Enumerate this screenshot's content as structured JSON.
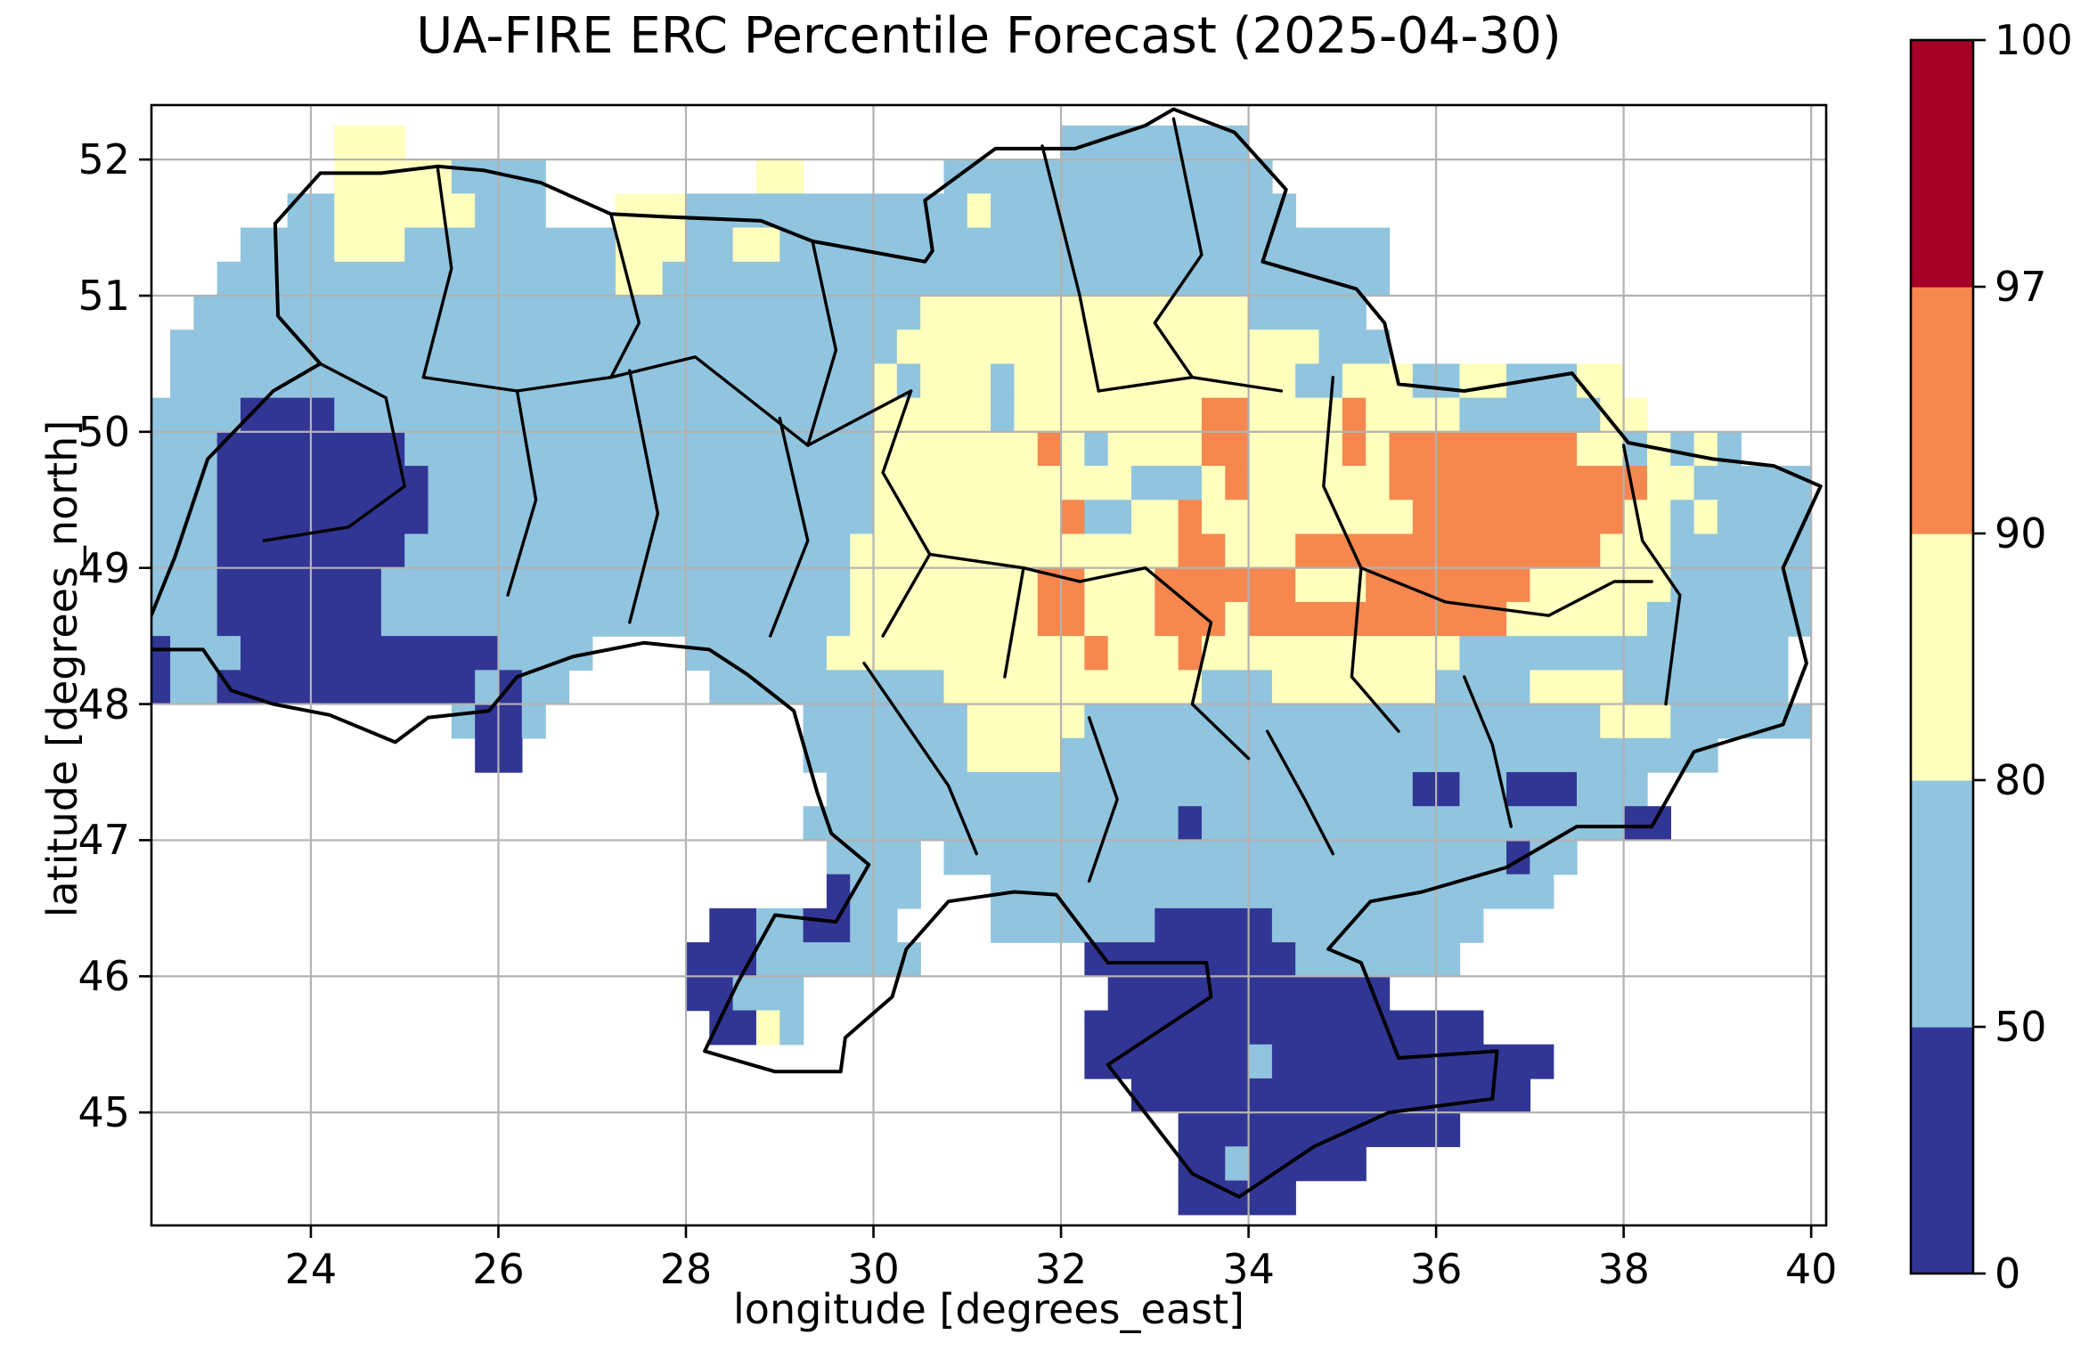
{
  "title": "UA-FIRE ERC Percentile Forecast (2025-04-30)",
  "axes": {
    "xlabel": "longitude [degrees_east]",
    "ylabel": "latitude [degrees_north]"
  },
  "colors": {
    "background": "#ffffff",
    "gridline": "#b2b2b2",
    "frame": "#000000",
    "boundary": "#000000",
    "class_0_50": "#313695",
    "class_50_80": "#91c4de",
    "class_80_90": "#ffffbe",
    "class_90_97": "#f5874f",
    "class_97_100": "#a50026"
  },
  "chart_data": {
    "type": "heatmap",
    "title": "UA-FIRE ERC Percentile Forecast (2025-04-30)",
    "xlabel": "longitude [degrees_east]",
    "ylabel": "latitude [degrees_north]",
    "xlim": [
      22.3,
      40.16
    ],
    "ylim": [
      44.17,
      52.4
    ],
    "grid": true,
    "x_ticks": [
      24,
      26,
      28,
      30,
      32,
      34,
      36,
      38,
      40
    ],
    "x_tick_labels": [
      "24",
      "26",
      "28",
      "30",
      "32",
      "34",
      "36",
      "38",
      "40"
    ],
    "y_ticks": [
      52,
      51,
      50,
      49,
      48,
      47,
      46,
      45
    ],
    "y_tick_labels": [
      "52",
      "51",
      "50",
      "49",
      "48",
      "47",
      "46",
      "45"
    ],
    "colorbar": {
      "levels": [
        0,
        50,
        80,
        90,
        97,
        100
      ],
      "tick_labels": [
        "0",
        "50",
        "80",
        "90",
        "97",
        "100"
      ],
      "segment_colors": [
        "#313695",
        "#91c4de",
        "#ffffbe",
        "#f5874f",
        "#a50026"
      ],
      "position": "right"
    },
    "legend_codes": {
      "1": {
        "range": "0-50",
        "color": "#313695"
      },
      "2": {
        "range": "50-80",
        "color": "#91c4de"
      },
      "3": {
        "range": "80-90",
        "color": "#ffffbe"
      },
      "4": {
        "range": "90-97",
        "color": "#f5874f"
      },
      "5": {
        "range": "97-100",
        "color": "#a50026"
      }
    },
    "grid_origin": {
      "lon": 22.25,
      "lat_top": 52.25
    },
    "cell_size_deg": 0.25,
    "n_cols": 71,
    "n_rows": 32,
    "rows": [
      "........333............................22222222",
      "........333332222.........33......22222222222222",
      "......22333333222...33322222222222232222222222222",
      "....2222333222222222333223322222222222222222222222222",
      "...22222222222222222332222222222222222222222222222222",
      "..22222222222222222222222222222223333333333333322222",
      ".2222222222222222222222222222222333333333333333333222",
      ".22222222222222222222222222222232333233333333333322333223322233",
      "2222111122222222222222222222222333332333333334433334333322222233",
      "2221111111122222222222222222222333333343233334433334344444444332 3232",
      "22211111111122222222222222222223333333333322234333333444444444443322222",
      "2221111111112222222222222222222333333334223343333333334444444443323 2222",
      "222111111112222222222222222222333333333333334433344444444444443332 22222",
      "22211111112222222222222222222233333333443334444443334444444333333222222",
      "22211111112222222222222222222233333333443334443444444444443333332222222",
      "122211111111111222 2....22222233333333333433343333333333322222222222222",
      "1221111111111121 22......222222222233333333333222333333322223333 2222222",
      ".............211 2...........2222222333332222222222222222222222333222222",
      "..............11............22222223333222222222222222222222222222 2",
      ".............................22222222222222222222222221122111222",
      "............................22222222222222221222222222222222222 11",
      ".............................2222.2222222222222222222222221 22",
      ".............................1222...222222222222222222222222",
      "........................11221122....2222222111112 22222222",
      ".......................1112222222.......111111111 2222222",
      ".......................11222.............111111111 111",
      "........................1132............11111111111111111",
      "........................................11111112111111111 111",
      "..........................................11111111111111111",
      "............................................111111111111",
      "............................................112 11111",
      "............................................11111"
    ],
    "borders": {
      "national": [
        [
          23.62,
          51.53
        ],
        [
          24.1,
          51.9
        ],
        [
          24.75,
          51.9
        ],
        [
          25.35,
          51.95
        ],
        [
          25.85,
          51.92
        ],
        [
          26.45,
          51.83
        ],
        [
          27.2,
          51.6
        ],
        [
          27.75,
          51.58
        ],
        [
          28.8,
          51.55
        ],
        [
          29.35,
          51.4
        ],
        [
          30.55,
          51.25
        ],
        [
          30.63,
          51.33
        ],
        [
          30.55,
          51.7
        ],
        [
          31.3,
          52.08
        ],
        [
          32.15,
          52.08
        ],
        [
          32.9,
          52.25
        ],
        [
          33.2,
          52.37
        ],
        [
          33.85,
          52.2
        ],
        [
          34.4,
          51.78
        ],
        [
          34.15,
          51.25
        ],
        [
          35.15,
          51.05
        ],
        [
          35.45,
          50.8
        ],
        [
          35.6,
          50.35
        ],
        [
          36.3,
          50.3
        ],
        [
          37.45,
          50.43
        ],
        [
          38.05,
          49.92
        ],
        [
          38.95,
          49.8
        ],
        [
          39.6,
          49.75
        ],
        [
          40.1,
          49.6
        ],
        [
          39.7,
          49.0
        ],
        [
          39.95,
          48.3
        ],
        [
          39.7,
          47.85
        ],
        [
          38.75,
          47.65
        ],
        [
          38.3,
          47.1
        ],
        [
          37.5,
          47.1
        ],
        [
          36.75,
          46.8
        ],
        [
          35.85,
          46.62
        ],
        [
          35.3,
          46.55
        ],
        [
          34.85,
          46.2
        ],
        [
          35.2,
          46.1
        ],
        [
          35.6,
          45.4
        ],
        [
          36.65,
          45.45
        ],
        [
          36.6,
          45.1
        ],
        [
          35.5,
          45.0
        ],
        [
          34.7,
          44.75
        ],
        [
          33.9,
          44.38
        ],
        [
          33.4,
          44.55
        ],
        [
          32.5,
          45.35
        ],
        [
          33.6,
          45.85
        ],
        [
          33.55,
          46.1
        ],
        [
          32.5,
          46.1
        ],
        [
          31.95,
          46.6
        ],
        [
          31.5,
          46.62
        ],
        [
          30.8,
          46.55
        ],
        [
          30.35,
          46.2
        ],
        [
          30.2,
          45.85
        ],
        [
          29.7,
          45.55
        ],
        [
          29.65,
          45.3
        ],
        [
          28.95,
          45.3
        ],
        [
          28.2,
          45.45
        ],
        [
          28.55,
          45.95
        ],
        [
          28.95,
          46.45
        ],
        [
          29.6,
          46.4
        ],
        [
          29.95,
          46.82
        ],
        [
          29.55,
          47.05
        ],
        [
          29.4,
          47.35
        ],
        [
          29.15,
          47.95
        ],
        [
          28.65,
          48.22
        ],
        [
          28.25,
          48.4
        ],
        [
          27.55,
          48.45
        ],
        [
          26.8,
          48.35
        ],
        [
          26.2,
          48.2
        ],
        [
          25.9,
          47.95
        ],
        [
          25.25,
          47.9
        ],
        [
          24.9,
          47.72
        ],
        [
          24.2,
          47.92
        ],
        [
          23.6,
          48.0
        ],
        [
          23.15,
          48.1
        ],
        [
          22.85,
          48.4
        ],
        [
          22.15,
          48.4
        ],
        [
          22.55,
          49.08
        ],
        [
          22.9,
          49.8
        ],
        [
          23.6,
          50.3
        ],
        [
          24.1,
          50.5
        ],
        [
          23.65,
          50.85
        ],
        [
          23.62,
          51.53
        ]
      ],
      "internal": [
        [
          [
            25.35,
            51.95
          ],
          [
            25.5,
            51.2
          ],
          [
            25.2,
            50.4
          ]
        ],
        [
          [
            27.2,
            51.6
          ],
          [
            27.5,
            50.8
          ],
          [
            27.2,
            50.4
          ]
        ],
        [
          [
            29.35,
            51.4
          ],
          [
            29.6,
            50.6
          ],
          [
            29.3,
            49.9
          ]
        ],
        [
          [
            24.1,
            50.5
          ],
          [
            24.8,
            50.25
          ],
          [
            25.0,
            49.6
          ],
          [
            24.4,
            49.3
          ],
          [
            23.5,
            49.2
          ]
        ],
        [
          [
            25.2,
            50.4
          ],
          [
            26.2,
            50.3
          ],
          [
            27.2,
            50.4
          ],
          [
            28.1,
            50.55
          ],
          [
            29.3,
            49.9
          ],
          [
            30.4,
            50.3
          ]
        ],
        [
          [
            26.2,
            50.3
          ],
          [
            26.4,
            49.5
          ],
          [
            26.1,
            48.8
          ]
        ],
        [
          [
            27.4,
            50.45
          ],
          [
            27.7,
            49.4
          ],
          [
            27.4,
            48.6
          ]
        ],
        [
          [
            29.0,
            50.1
          ],
          [
            29.3,
            49.2
          ],
          [
            28.9,
            48.5
          ]
        ],
        [
          [
            30.4,
            50.3
          ],
          [
            30.1,
            49.7
          ],
          [
            30.6,
            49.1
          ],
          [
            30.1,
            48.5
          ]
        ],
        [
          [
            31.8,
            52.1
          ],
          [
            32.2,
            51.0
          ],
          [
            32.4,
            50.3
          ]
        ],
        [
          [
            33.2,
            52.3
          ],
          [
            33.5,
            51.3
          ],
          [
            33.0,
            50.8
          ],
          [
            33.4,
            50.4
          ]
        ],
        [
          [
            32.4,
            50.3
          ],
          [
            33.4,
            50.4
          ],
          [
            34.35,
            50.3
          ]
        ],
        [
          [
            34.9,
            50.4
          ],
          [
            34.8,
            49.6
          ],
          [
            35.2,
            49.0
          ]
        ],
        [
          [
            35.2,
            49.0
          ],
          [
            36.1,
            48.75
          ],
          [
            37.2,
            48.65
          ],
          [
            37.9,
            48.9
          ],
          [
            38.3,
            48.9
          ]
        ],
        [
          [
            38.0,
            49.9
          ],
          [
            38.2,
            49.2
          ],
          [
            38.6,
            48.8
          ],
          [
            38.45,
            48.0
          ]
        ],
        [
          [
            32.9,
            49.0
          ],
          [
            33.6,
            48.6
          ],
          [
            33.4,
            48.0
          ],
          [
            34.0,
            47.6
          ]
        ],
        [
          [
            36.3,
            48.2
          ],
          [
            36.6,
            47.7
          ],
          [
            36.8,
            47.1
          ]
        ],
        [
          [
            29.9,
            48.3
          ],
          [
            30.4,
            47.8
          ],
          [
            30.8,
            47.4
          ],
          [
            31.1,
            46.9
          ]
        ],
        [
          [
            32.3,
            47.9
          ],
          [
            32.6,
            47.3
          ],
          [
            32.3,
            46.7
          ]
        ],
        [
          [
            34.2,
            47.8
          ],
          [
            34.6,
            47.3
          ],
          [
            34.9,
            46.9
          ]
        ],
        [
          [
            30.6,
            49.1
          ],
          [
            31.6,
            49.0
          ],
          [
            32.2,
            48.9
          ],
          [
            32.9,
            49.0
          ]
        ],
        [
          [
            31.6,
            49.0
          ],
          [
            31.4,
            48.2
          ]
        ],
        [
          [
            35.2,
            49.0
          ],
          [
            35.1,
            48.2
          ],
          [
            35.6,
            47.8
          ]
        ]
      ]
    }
  }
}
